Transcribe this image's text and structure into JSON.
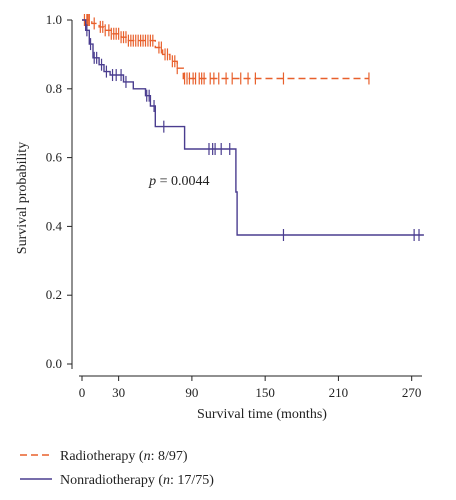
{
  "chart_data": {
    "type": "line",
    "title": "",
    "xlabel": "Survival time (months)",
    "ylabel": "Survival probability",
    "xlim": [
      0,
      285
    ],
    "ylim": [
      0,
      1.0
    ],
    "x_ticks": [
      0,
      30,
      90,
      150,
      210,
      270
    ],
    "x_tick_labels": [
      "0",
      "30",
      "90",
      "150",
      "210",
      "270"
    ],
    "y_ticks": [
      0.0,
      0.2,
      0.4,
      0.6,
      0.8,
      1.0
    ],
    "y_tick_labels": [
      "0.0",
      "0.2",
      "0.4",
      "0.6",
      "0.8",
      "1.0"
    ],
    "grid": false,
    "annotation": {
      "prefix": "p",
      "text": " = 0.0044",
      "x": 55,
      "y": 0.52
    },
    "legend": {
      "placement": "bottom-left",
      "entries": [
        {
          "series": 0,
          "name": "Radiotherapy",
          "prefix": "(",
          "italic": "n",
          "suffix": ": 8/97)"
        },
        {
          "series": 1,
          "name": "Nonradiotherapy",
          "prefix": "(",
          "italic": "n",
          "suffix": ": 17/75)"
        }
      ]
    },
    "series": [
      {
        "name": "Radiotherapy",
        "color": "#e8602c",
        "dash": true,
        "steps": [
          [
            0,
            1.0
          ],
          [
            8,
            0.99
          ],
          [
            14,
            0.98
          ],
          [
            18,
            0.97
          ],
          [
            24,
            0.96
          ],
          [
            32,
            0.95
          ],
          [
            38,
            0.94
          ],
          [
            60,
            0.92
          ],
          [
            66,
            0.9
          ],
          [
            72,
            0.88
          ],
          [
            78,
            0.86
          ],
          [
            83,
            0.83
          ],
          [
            235,
            0.83
          ]
        ],
        "censors": [
          2,
          4,
          5,
          6,
          10,
          15,
          17,
          19,
          22,
          24,
          26,
          28,
          30,
          32,
          34,
          36,
          38,
          40,
          42,
          44,
          46,
          48,
          50,
          52,
          54,
          56,
          58,
          63,
          65,
          68,
          70,
          74,
          76,
          78,
          84,
          86,
          88,
          91,
          93,
          96,
          98,
          100,
          105,
          108,
          112,
          118,
          123,
          130,
          136,
          142,
          165,
          235
        ]
      },
      {
        "name": "Nonradiotherapy",
        "color": "#4a3d8f",
        "dash": false,
        "steps": [
          [
            0,
            1.0
          ],
          [
            3,
            0.97
          ],
          [
            6,
            0.93
          ],
          [
            9,
            0.89
          ],
          [
            14,
            0.87
          ],
          [
            18,
            0.85
          ],
          [
            23,
            0.84
          ],
          [
            34,
            0.82
          ],
          [
            42,
            0.8
          ],
          [
            52,
            0.78
          ],
          [
            56,
            0.75
          ],
          [
            60,
            0.69
          ],
          [
            84,
            0.625
          ],
          [
            126,
            0.5
          ],
          [
            127,
            0.375
          ],
          [
            280,
            0.375
          ]
        ],
        "censors": [
          4,
          7,
          10,
          12,
          16,
          20,
          25,
          28,
          32,
          36,
          53,
          55,
          59,
          67,
          104,
          107,
          109,
          114,
          121,
          165,
          272,
          276
        ]
      }
    ]
  }
}
